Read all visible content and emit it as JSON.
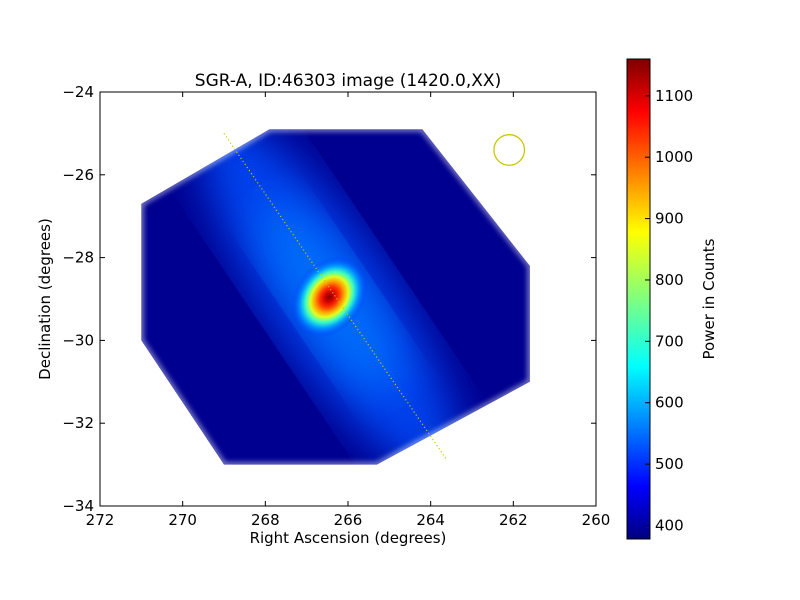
{
  "chart_data": {
    "type": "heatmap",
    "title": "SGR-A, ID:46303 image (1420.0,XX)",
    "xlabel": "Right Ascension (degrees)",
    "ylabel": "Declination (degrees)",
    "xlim": [
      272,
      260
    ],
    "ylim": [
      -34,
      -24
    ],
    "x_ticks": [
      272,
      270,
      268,
      266,
      264,
      262,
      260
    ],
    "y_ticks": [
      -34,
      -32,
      -30,
      -28,
      -26,
      -24
    ],
    "x_tick_labels": [
      "272",
      "270",
      "268",
      "266",
      "264",
      "262",
      "260"
    ],
    "y_tick_labels": [
      "−34",
      "−32",
      "−30",
      "−28",
      "−26",
      "−24"
    ],
    "colormap": "jet",
    "colorbar": {
      "label": "Power in Counts",
      "min": 378,
      "max": 1160,
      "ticks": [
        400,
        500,
        600,
        700,
        800,
        900,
        1000,
        1100
      ],
      "tick_labels": [
        "400",
        "500",
        "600",
        "700",
        "800",
        "900",
        "1000",
        "1100"
      ]
    },
    "footprint_polygon_deg": [
      [
        267.9,
        -24.9
      ],
      [
        264.2,
        -24.9
      ],
      [
        261.6,
        -28.2
      ],
      [
        261.6,
        -31.0
      ],
      [
        265.3,
        -33.0
      ],
      [
        269.0,
        -33.0
      ],
      [
        271.0,
        -30.0
      ],
      [
        271.0,
        -26.7
      ]
    ],
    "source_peak": {
      "ra": 266.45,
      "dec": -28.95,
      "value": 1160
    },
    "background_level": 385,
    "scan_line": {
      "start": [
        269.0,
        -25.0
      ],
      "end": [
        263.6,
        -32.9
      ],
      "color": "#c8c800"
    },
    "beam_circle": {
      "ra": 262.1,
      "dec": -25.4,
      "radius_deg": 0.37,
      "color": "#c8c800"
    }
  }
}
